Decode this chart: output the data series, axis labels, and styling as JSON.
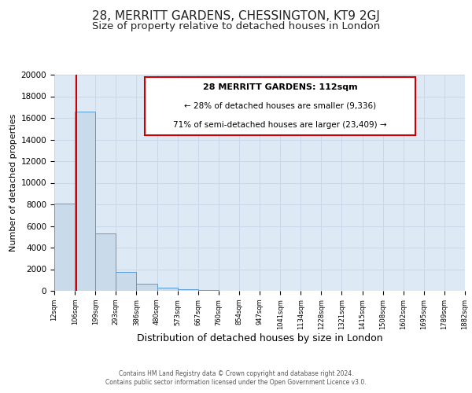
{
  "title": "28, MERRITT GARDENS, CHESSINGTON, KT9 2GJ",
  "subtitle": "Size of property relative to detached houses in London",
  "xlabel": "Distribution of detached houses by size in London",
  "ylabel": "Number of detached properties",
  "bin_labels": [
    "12sqm",
    "106sqm",
    "199sqm",
    "293sqm",
    "386sqm",
    "480sqm",
    "573sqm",
    "667sqm",
    "760sqm",
    "854sqm",
    "947sqm",
    "1041sqm",
    "1134sqm",
    "1228sqm",
    "1321sqm",
    "1415sqm",
    "1508sqm",
    "1602sqm",
    "1695sqm",
    "1789sqm",
    "1882sqm"
  ],
  "bar_heights": [
    8100,
    16600,
    5300,
    1750,
    650,
    300,
    150,
    100,
    30,
    20,
    10,
    5,
    5,
    3,
    3,
    2,
    2,
    1,
    1,
    1
  ],
  "bar_color": "#c9daea",
  "bar_edge_color": "#5b9bd5",
  "red_line_x": 1.06,
  "ylim": [
    0,
    20000
  ],
  "yticks": [
    0,
    2000,
    4000,
    6000,
    8000,
    10000,
    12000,
    14000,
    16000,
    18000,
    20000
  ],
  "grid_color": "#c8d8e8",
  "background_color": "#ddeaf6",
  "annotation_title": "28 MERRITT GARDENS: 112sqm",
  "annotation_line1": "← 28% of detached houses are smaller (9,336)",
  "annotation_line2": "71% of semi-detached houses are larger (23,409) →",
  "annotation_box_color": "#ffffff",
  "annotation_border_color": "#cc0000",
  "footer1": "Contains HM Land Registry data © Crown copyright and database right 2024.",
  "footer2": "Contains public sector information licensed under the Open Government Licence v3.0.",
  "title_fontsize": 11,
  "subtitle_fontsize": 9.5,
  "xlabel_fontsize": 9,
  "ylabel_fontsize": 8
}
